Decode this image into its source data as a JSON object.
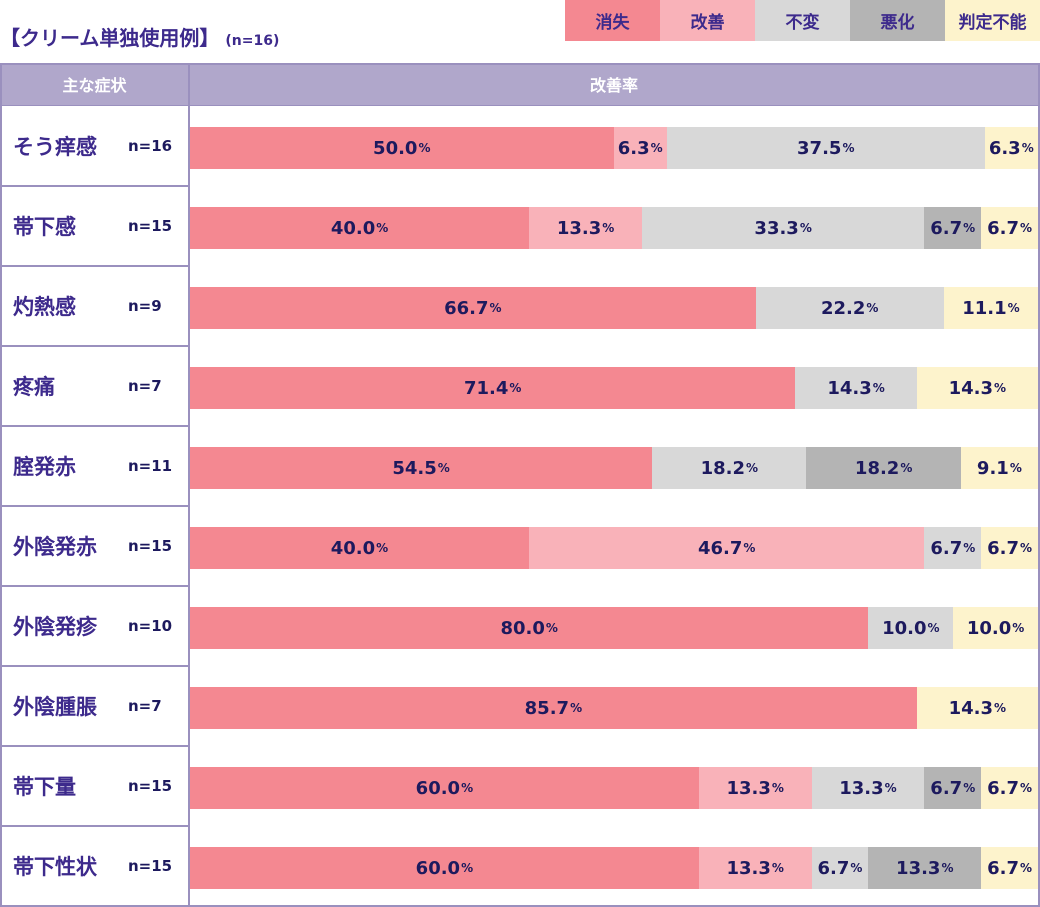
{
  "title": {
    "text": "【クリーム単独使用例】",
    "n_label": "(n=16)"
  },
  "colors": {
    "消失": "#f48891",
    "改善": "#f9b2b9",
    "不変": "#d8d8d8",
    "悪化": "#b4b4b4",
    "判定不能": "#fdf3cc"
  },
  "legend": [
    "消失",
    "改善",
    "不変",
    "悪化",
    "判定不能"
  ],
  "header": {
    "symptom": "主な症状",
    "rate": "改善率"
  },
  "percent_sign": "%",
  "chart_data": {
    "type": "bar",
    "orientation": "horizontal",
    "stacked": true,
    "normalized": true,
    "title": "【クリーム単独使用例】",
    "categories": [
      "そう痒感",
      "帯下感",
      "灼熱感",
      "疼痛",
      "腟発赤",
      "外陰発赤",
      "外陰発疹",
      "外陰腫脹",
      "帯下量",
      "帯下性状"
    ],
    "n_labels": [
      "n=16",
      "n=15",
      "n=9",
      "n=7",
      "n=11",
      "n=15",
      "n=10",
      "n=7",
      "n=15",
      "n=15"
    ],
    "series": [
      {
        "name": "消失",
        "values": [
          50.0,
          40.0,
          66.7,
          71.4,
          54.5,
          40.0,
          80.0,
          85.7,
          60.0,
          60.0
        ]
      },
      {
        "name": "改善",
        "values": [
          6.3,
          13.3,
          0,
          0,
          0,
          46.7,
          0,
          0,
          13.3,
          13.3
        ]
      },
      {
        "name": "不変",
        "values": [
          37.5,
          33.3,
          22.2,
          14.3,
          18.2,
          6.7,
          10.0,
          0,
          13.3,
          6.7
        ]
      },
      {
        "name": "悪化",
        "values": [
          0,
          6.7,
          0,
          0,
          18.2,
          0,
          0,
          0,
          6.7,
          13.3
        ]
      },
      {
        "name": "判定不能",
        "values": [
          6.3,
          6.7,
          11.1,
          14.3,
          9.1,
          6.7,
          10.0,
          14.3,
          6.7,
          6.7
        ]
      }
    ],
    "unit": "%",
    "xlim": [
      0,
      100
    ]
  }
}
